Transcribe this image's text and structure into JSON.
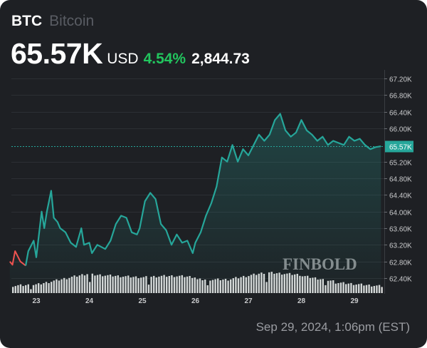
{
  "header": {
    "symbol": "BTC",
    "name": "Bitcoin",
    "price": "65.57K",
    "currency": "USD",
    "change_percent": "4.54%",
    "change_absolute": "2,844.73"
  },
  "footer": {
    "timestamp": "Sep 29, 2024, 1:06pm (EST)"
  },
  "watermark": "FINBOLD",
  "colors": {
    "background": "#1e2024",
    "line_up": "#26a69a",
    "line_down": "#ef5350",
    "change_positive": "#22c55e",
    "volume": "#d9d9d9",
    "grid": "#2e3136",
    "price_tag": "#26a69a"
  },
  "chart_data": {
    "type": "line",
    "title": "BTC Bitcoin",
    "xlabel": "",
    "ylabel": "USD",
    "x_ticks": [
      "23",
      "24",
      "25",
      "26",
      "27",
      "28",
      "29"
    ],
    "y_ticks": [
      "67.20K",
      "66.80K",
      "66.40K",
      "66.00K",
      "65.20K",
      "64.80K",
      "64.40K",
      "64.00K",
      "63.60K",
      "63.20K",
      "62.80K",
      "62.40K"
    ],
    "ylim": [
      62400,
      67200
    ],
    "current_price_label": "65.57K",
    "current_price": 65570,
    "grid": true,
    "volume_bars": true,
    "series": [
      {
        "name": "BTC/USD",
        "x": [
          22.5,
          22.55,
          22.6,
          22.7,
          22.8,
          22.85,
          22.95,
          23.0,
          23.1,
          23.15,
          23.2,
          23.28,
          23.33,
          23.4,
          23.45,
          23.55,
          23.65,
          23.75,
          23.85,
          23.9,
          24.0,
          24.05,
          24.15,
          24.3,
          24.4,
          24.5,
          24.6,
          24.7,
          24.8,
          24.9,
          24.95,
          25.05,
          25.15,
          25.25,
          25.35,
          25.45,
          25.55,
          25.65,
          25.75,
          25.85,
          25.95,
          26.0,
          26.1,
          26.2,
          26.3,
          26.4,
          26.5,
          26.6,
          26.7,
          26.75,
          26.8,
          26.9,
          27.0,
          27.1,
          27.2,
          27.3,
          27.4,
          27.5,
          27.6,
          27.7,
          27.8,
          27.9,
          28.0,
          28.1,
          28.2,
          28.3,
          28.4,
          28.5,
          28.6,
          28.7,
          28.8,
          28.9,
          29.0,
          29.1,
          29.2,
          29.3,
          29.4,
          29.5
        ],
        "values": [
          62800,
          62720,
          63050,
          62800,
          62700,
          63050,
          63300,
          62900,
          64000,
          63600,
          64000,
          64500,
          63850,
          63750,
          63600,
          63500,
          63250,
          63150,
          63600,
          63200,
          63250,
          63000,
          63200,
          63100,
          63300,
          63700,
          63900,
          63850,
          63500,
          63450,
          63600,
          64250,
          64450,
          64300,
          63700,
          63550,
          63200,
          63450,
          63250,
          63300,
          63000,
          63250,
          63500,
          63900,
          64200,
          64600,
          65300,
          65200,
          65600,
          65400,
          65200,
          65500,
          65350,
          65600,
          65850,
          65700,
          65850,
          66200,
          66350,
          65950,
          65800,
          65900,
          66200,
          65950,
          65850,
          65700,
          65800,
          65600,
          65700,
          65650,
          65600,
          65800,
          65700,
          65750,
          65600,
          65500,
          65550,
          65570
        ]
      }
    ],
    "volume_series": {
      "name": "Volume",
      "note": "relative heights, unlabeled",
      "x_range": [
        22.5,
        29.55
      ]
    }
  }
}
